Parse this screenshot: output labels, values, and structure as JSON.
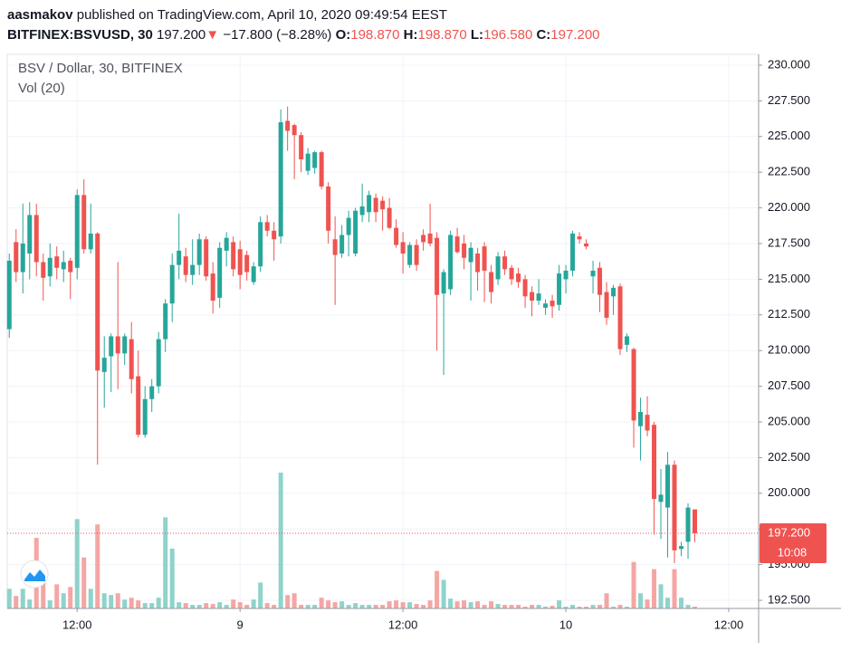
{
  "header": {
    "user": "aasmakov",
    "published": "published on TradingView.com, April 10, 2020 09:49:54 EEST",
    "symbol": "BITFINEX:BSVUSD, 30",
    "price": "197.200",
    "arrow": "▼",
    "change": "−17.800 (−8.28%)",
    "ohlc": [
      {
        "label": "O:",
        "value": "198.870"
      },
      {
        "label": "H:",
        "value": "198.870"
      },
      {
        "label": "L:",
        "value": "196.580"
      },
      {
        "label": "C:",
        "value": "197.200"
      }
    ]
  },
  "chart_data": {
    "type": "candlestick",
    "title": "BSV / Dollar, 30, BITFINEX",
    "volume_label": "Vol (20)",
    "up_color": "#26a69a",
    "down_color": "#ef5350",
    "up_volume_color": "#8fd3cb",
    "down_volume_color": "#f4a6a4",
    "grid": true,
    "ylim": [
      191.93,
      230.76
    ],
    "yticks": [
      {
        "value": 230,
        "label": "230.000"
      },
      {
        "value": 227.5,
        "label": "227.500"
      },
      {
        "value": 225,
        "label": "225.000"
      },
      {
        "value": 222.5,
        "label": "222.500"
      },
      {
        "value": 220,
        "label": "220.000"
      },
      {
        "value": 217.5,
        "label": "217.500"
      },
      {
        "value": 215,
        "label": "215.000"
      },
      {
        "value": 212.5,
        "label": "212.500"
      },
      {
        "value": 210,
        "label": "210.000"
      },
      {
        "value": 207.5,
        "label": "207.500"
      },
      {
        "value": 205,
        "label": "205.000"
      },
      {
        "value": 202.5,
        "label": "202.500"
      },
      {
        "value": 200,
        "label": "200.000"
      },
      {
        "value": 197.5,
        "label": "197.500"
      },
      {
        "value": 195,
        "label": "195.000"
      },
      {
        "value": 192.5,
        "label": "192.500"
      }
    ],
    "xlim": [
      -0.3,
      110.4
    ],
    "xticks": [
      {
        "value": 10,
        "label": "12:00"
      },
      {
        "value": 34,
        "label": "9"
      },
      {
        "value": 58,
        "label": "12:00"
      },
      {
        "value": 82,
        "label": "10"
      },
      {
        "value": 106,
        "label": "12:00"
      }
    ],
    "last_price": {
      "value": 197.2,
      "label": "197.200"
    },
    "countdown": "10:08",
    "open": [
      211.5,
      217.6,
      215.5,
      216.8,
      219.5,
      216.2,
      215.2,
      216.6,
      215.7,
      216.3,
      215.8,
      220.9,
      217.1,
      218.2,
      208.5,
      209.6,
      211,
      209.8,
      210.8,
      208.2,
      204.1,
      206.6,
      207.5,
      210.8,
      213.3,
      216,
      216.6,
      215.3,
      216,
      217.8,
      215.4,
      213.7,
      217,
      217.6,
      217.1,
      216.7,
      214.8,
      215.9,
      219,
      218.4,
      218,
      226.1,
      225.8,
      225.1,
      222.6,
      222.8,
      223.9,
      221.5,
      217.8,
      216.8,
      218.1,
      216.8,
      219.5,
      219.7,
      220.7,
      220.5,
      220,
      218.6,
      217.6,
      216,
      217.4,
      218.1,
      218.2,
      217.9,
      214,
      214.3,
      218,
      217.5,
      216.2,
      216.8,
      217.3,
      215.5,
      215,
      216.6,
      215.8,
      215.4,
      215,
      214.1,
      213.5,
      213,
      213.5,
      213.2,
      215,
      215.6,
      218,
      217.5,
      215.2,
      215.8,
      214.1,
      213.8,
      214.5,
      210.4,
      210.1,
      204.7,
      205.5,
      204.8,
      199.4,
      199,
      202,
      196.1,
      196.6,
      198.87
    ],
    "high": [
      216.8,
      218.5,
      220.3,
      220.4,
      220.3,
      216.8,
      217.5,
      217.3,
      217,
      216.5,
      221.3,
      222,
      220.3,
      218.3,
      211,
      211.2,
      216.2,
      211.2,
      212,
      210,
      207.5,
      208,
      211.3,
      213.6,
      216.8,
      219.6,
      217.2,
      217.8,
      218.2,
      218,
      216.2,
      217.6,
      218.3,
      218,
      217.7,
      217,
      216.2,
      219.4,
      219.5,
      219,
      226.9,
      227.1,
      225.9,
      225.3,
      224.2,
      224,
      224,
      221.8,
      219.4,
      218.8,
      219.8,
      220,
      221.7,
      221.2,
      221,
      220.8,
      220.7,
      219.2,
      218.3,
      217.6,
      217.8,
      218.5,
      220.3,
      218.3,
      215.7,
      218.4,
      218.6,
      218.1,
      217.6,
      217.2,
      217.6,
      216,
      216.9,
      217,
      216,
      215.8,
      215.3,
      214.5,
      215,
      213.6,
      213.9,
      216,
      216,
      218.4,
      218.3,
      217.8,
      216.3,
      216.2,
      214.8,
      214.6,
      214.7,
      211.2,
      210.2,
      206.7,
      206.8,
      205,
      201.7,
      202.9,
      202.3,
      196.6,
      199.3,
      198.87
    ],
    "low": [
      210.9,
      214.8,
      214,
      215,
      215.2,
      213.5,
      214.5,
      215,
      214.8,
      213.6,
      215,
      216.8,
      216.8,
      202,
      206,
      207.1,
      207.3,
      209,
      207,
      203.9,
      203.9,
      205.7,
      207,
      209.9,
      212,
      215,
      214.8,
      214.6,
      215.3,
      214.9,
      212.6,
      213,
      215.9,
      215.2,
      214.3,
      214.9,
      214.6,
      215.5,
      218,
      216.3,
      217.5,
      224,
      222,
      222.5,
      222.3,
      222.4,
      221.3,
      217.5,
      213.2,
      216.5,
      216.6,
      216.6,
      219,
      219,
      219,
      218.4,
      218.5,
      217.2,
      215.4,
      215.8,
      215.6,
      217,
      217.3,
      210,
      208.3,
      213.9,
      216.8,
      215.7,
      213.5,
      214.2,
      213.4,
      213.3,
      214.6,
      215.3,
      214.6,
      214.4,
      213,
      212.4,
      213.2,
      212.5,
      212.3,
      212.8,
      214,
      215.2,
      217.5,
      217.1,
      214,
      212.7,
      211.8,
      212.5,
      209.7,
      209.9,
      203.2,
      202.3,
      204,
      197.1,
      196.8,
      195.5,
      195.1,
      195.6,
      195.4,
      196.58
    ],
    "close": [
      216.3,
      215.5,
      217.5,
      219.5,
      216.2,
      215.1,
      216.5,
      215.8,
      216.2,
      215.5,
      220.9,
      217.1,
      218.2,
      208.6,
      209.5,
      211,
      209.8,
      211,
      208,
      204.1,
      206.6,
      207.5,
      210.8,
      213.3,
      216,
      217,
      215.3,
      216,
      217.8,
      215.2,
      213.5,
      217.2,
      217.9,
      215.7,
      215.3,
      215.5,
      215.9,
      219,
      218.4,
      217.8,
      226,
      225.4,
      225.1,
      223.4,
      223.8,
      223.9,
      221.5,
      218.4,
      216.7,
      218.1,
      219.3,
      219.8,
      220.1,
      220.9,
      219.7,
      219.9,
      218.6,
      217.4,
      216.8,
      217.4,
      216,
      217.6,
      217.5,
      213.9,
      215.5,
      218.1,
      216.9,
      216.5,
      217.2,
      215.5,
      215.6,
      214.1,
      216.6,
      215.7,
      215,
      214.8,
      213.8,
      213.5,
      214,
      213.3,
      213.1,
      215.4,
      215.6,
      218.2,
      217.8,
      217.3,
      215.6,
      213.9,
      212.3,
      214.4,
      210.1,
      211,
      205.1,
      205.7,
      204.4,
      199.6,
      199.9,
      202,
      196,
      196.3,
      199,
      197.2
    ],
    "volume": [
      22,
      14,
      22,
      10,
      79,
      32,
      9,
      27,
      17,
      24,
      100,
      57,
      22,
      94,
      17,
      15,
      17,
      10,
      12,
      9,
      6,
      6,
      12,
      102,
      67,
      7,
      6,
      4,
      4,
      6,
      5,
      7,
      4,
      10,
      7,
      4,
      10,
      29,
      6,
      4,
      152,
      15,
      17,
      4,
      4,
      4,
      12,
      9,
      7,
      8,
      4,
      6,
      4,
      4,
      4,
      4,
      8,
      9,
      7,
      7,
      5,
      4,
      9,
      42,
      32,
      11,
      8,
      9,
      7,
      8,
      4,
      8,
      5,
      4,
      4,
      4,
      2,
      4,
      4,
      2,
      3,
      9,
      2,
      4,
      2,
      2,
      4,
      4,
      17,
      2,
      4,
      2,
      52,
      17,
      10,
      44,
      27,
      12,
      44,
      12,
      4,
      2
    ]
  }
}
